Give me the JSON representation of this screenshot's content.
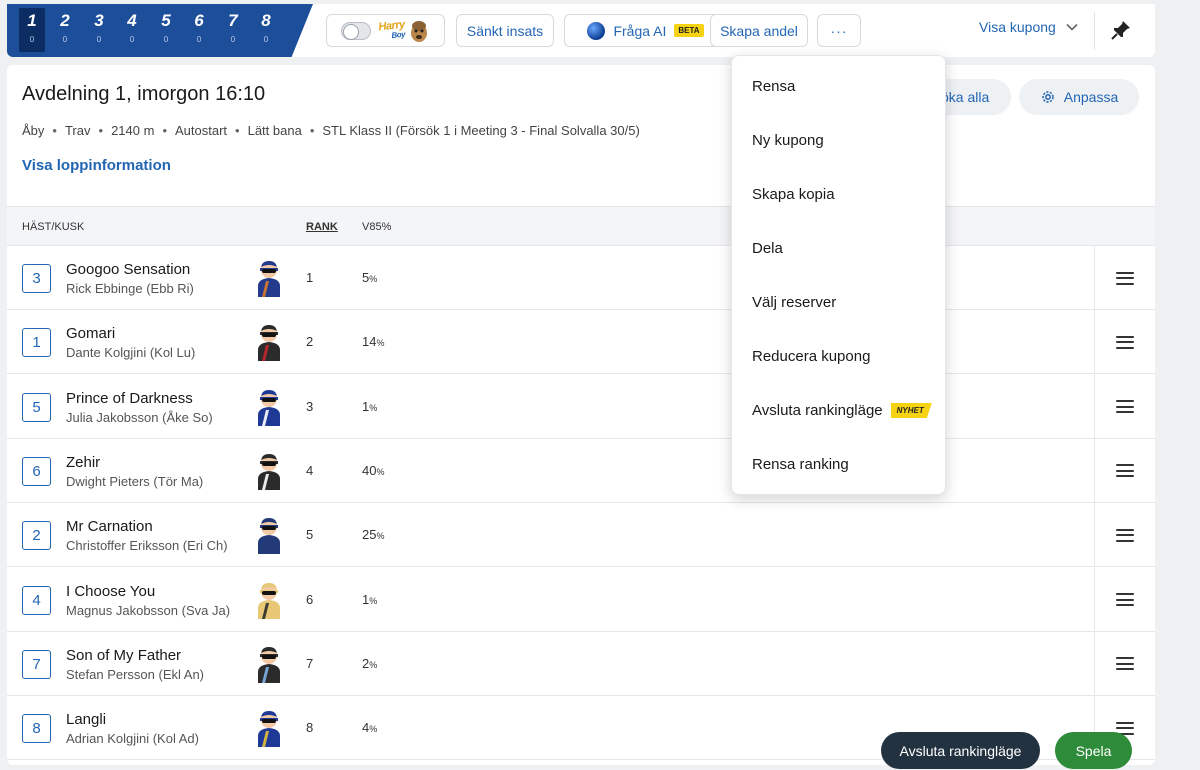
{
  "legs": [
    {
      "label": "1",
      "count": "0"
    },
    {
      "label": "2",
      "count": "0"
    },
    {
      "label": "3",
      "count": "0"
    },
    {
      "label": "4",
      "count": "0"
    },
    {
      "label": "5",
      "count": "0"
    },
    {
      "label": "6",
      "count": "0"
    },
    {
      "label": "7",
      "count": "0"
    },
    {
      "label": "8",
      "count": "0"
    }
  ],
  "toolbar": {
    "harry_logo_line1": "Harry",
    "harry_logo_line2": "Boy",
    "sankt_insats": "Sänkt insats",
    "fraga_ai": "Fråga AI",
    "beta_badge": "BETA",
    "skapa_andel": "Skapa andel",
    "more": "···",
    "visa_kupong": "Visa kupong"
  },
  "race": {
    "title": "Avdelning 1,  imorgon 16:10",
    "meta": [
      "Åby",
      "Trav",
      "2140 m",
      "Autostart",
      "Lätt bana",
      "STL Klass II (Försök 1 i Meeting 3 - Final Solvalla 30/5)"
    ],
    "info_link": "Visa loppinformation",
    "search_all_partial": "öka alla",
    "customize": "Anpassa"
  },
  "table": {
    "col_horse": "HÄST/KUSK",
    "col_rank": "RANK",
    "col_v85": "V85%",
    "rows": [
      {
        "start": "3",
        "horse": "Googoo Sensation",
        "driver": "Rick Ebbinge (Ebb Ri)",
        "rank": "1",
        "pct": "5",
        "jersey": "#243a8c",
        "jersey_accent": "#d97a28"
      },
      {
        "start": "1",
        "horse": "Gomari",
        "driver": "Dante Kolgjini (Kol Lu)",
        "rank": "2",
        "pct": "14",
        "jersey": "#2b2b2b",
        "jersey_accent": "#c8262e"
      },
      {
        "start": "5",
        "horse": "Prince of Darkness",
        "driver": "Julia Jakobsson (Åke So)",
        "rank": "3",
        "pct": "1",
        "jersey": "#1f3a96",
        "jersey_accent": "#ffffff"
      },
      {
        "start": "6",
        "horse": "Zehir",
        "driver": "Dwight Pieters (Tör Ma)",
        "rank": "4",
        "pct": "40",
        "jersey": "#2b2b2b",
        "jersey_accent": "#ffffff"
      },
      {
        "start": "2",
        "horse": "Mr Carnation",
        "driver": "Christoffer Eriksson (Eri Ch)",
        "rank": "5",
        "pct": "25",
        "jersey": "#223a78",
        "jersey_accent": "#223a78"
      },
      {
        "start": "4",
        "horse": "I Choose You",
        "driver": "Magnus Jakobsson (Sva Ja)",
        "rank": "6",
        "pct": "1",
        "jersey": "#e8c777",
        "jersey_accent": "#2b2b2b"
      },
      {
        "start": "7",
        "horse": "Son of My Father",
        "driver": "Stefan Persson (Ekl An)",
        "rank": "7",
        "pct": "2",
        "jersey": "#2b2b2b",
        "jersey_accent": "#7fb3e6"
      },
      {
        "start": "8",
        "horse": "Langli",
        "driver": "Adrian Kolgjini (Kol Ad)",
        "rank": "8",
        "pct": "4",
        "jersey": "#1f3a96",
        "jersey_accent": "#e8c236"
      }
    ]
  },
  "menu": {
    "items": [
      "Rensa",
      "Ny kupong",
      "Skapa kopia",
      "Dela",
      "Välj reserver",
      "Reducera kupong",
      "Avsluta rankingläge",
      "Rensa ranking"
    ],
    "nyhet_badge": "NYHET"
  },
  "footer": {
    "end_ranking": "Avsluta rankingläge",
    "play": "Spela"
  },
  "colors": {
    "brand_blue": "#1d4e9a",
    "link_blue": "#2366b4",
    "play_green": "#2e8b3a",
    "badge_yellow": "#f5d312"
  }
}
